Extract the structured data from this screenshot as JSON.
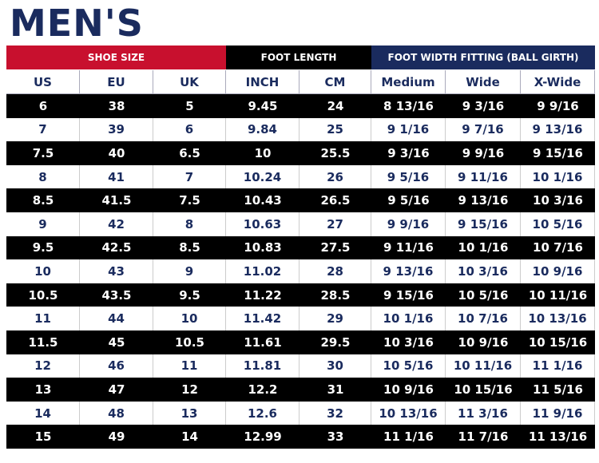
{
  "title": "MEN'S",
  "groups": [
    {
      "label": "SHOE SIZE",
      "span": 3,
      "color": "#c8102e"
    },
    {
      "label": "FOOT LENGTH",
      "span": 2,
      "color": "#000000"
    },
    {
      "label": "FOOT WIDTH FITTING (BALL GIRTH)",
      "span": 3,
      "color": "#1a2b5e"
    }
  ],
  "columns": [
    "US",
    "EU",
    "UK",
    "INCH",
    "CM",
    "Medium",
    "Wide",
    "X-Wide"
  ],
  "rows": [
    [
      "6",
      "38",
      "5",
      "9.45",
      "24",
      "8 13/16",
      "9 3/16",
      "9 9/16"
    ],
    [
      "7",
      "39",
      "6",
      "9.84",
      "25",
      "9 1/16",
      "9 7/16",
      "9 13/16"
    ],
    [
      "7.5",
      "40",
      "6.5",
      "10",
      "25.5",
      "9 3/16",
      "9 9/16",
      "9 15/16"
    ],
    [
      "8",
      "41",
      "7",
      "10.24",
      "26",
      "9 5/16",
      "9 11/16",
      "10 1/16"
    ],
    [
      "8.5",
      "41.5",
      "7.5",
      "10.43",
      "26.5",
      "9 5/16",
      "9 13/16",
      "10 3/16"
    ],
    [
      "9",
      "42",
      "8",
      "10.63",
      "27",
      "9 9/16",
      "9 15/16",
      "10 5/16"
    ],
    [
      "9.5",
      "42.5",
      "8.5",
      "10.83",
      "27.5",
      "9 11/16",
      "10 1/16",
      "10 7/16"
    ],
    [
      "10",
      "43",
      "9",
      "11.02",
      "28",
      "9 13/16",
      "10 3/16",
      "10 9/16"
    ],
    [
      "10.5",
      "43.5",
      "9.5",
      "11.22",
      "28.5",
      "9 15/16",
      "10 5/16",
      "10 11/16"
    ],
    [
      "11",
      "44",
      "10",
      "11.42",
      "29",
      "10 1/16",
      "10 7/16",
      "10 13/16"
    ],
    [
      "11.5",
      "45",
      "10.5",
      "11.61",
      "29.5",
      "10 3/16",
      "10 9/16",
      "10 15/16"
    ],
    [
      "12",
      "46",
      "11",
      "11.81",
      "30",
      "10 5/16",
      "10 11/16",
      "11 1/16"
    ],
    [
      "13",
      "47",
      "12",
      "12.2",
      "31",
      "10 9/16",
      "10 15/16",
      "11 5/16"
    ],
    [
      "14",
      "48",
      "13",
      "12.6",
      "32",
      "10 13/16",
      "11 3/16",
      "11 9/16"
    ],
    [
      "15",
      "49",
      "14",
      "12.99",
      "33",
      "11 1/16",
      "11 7/16",
      "11 13/16"
    ]
  ]
}
